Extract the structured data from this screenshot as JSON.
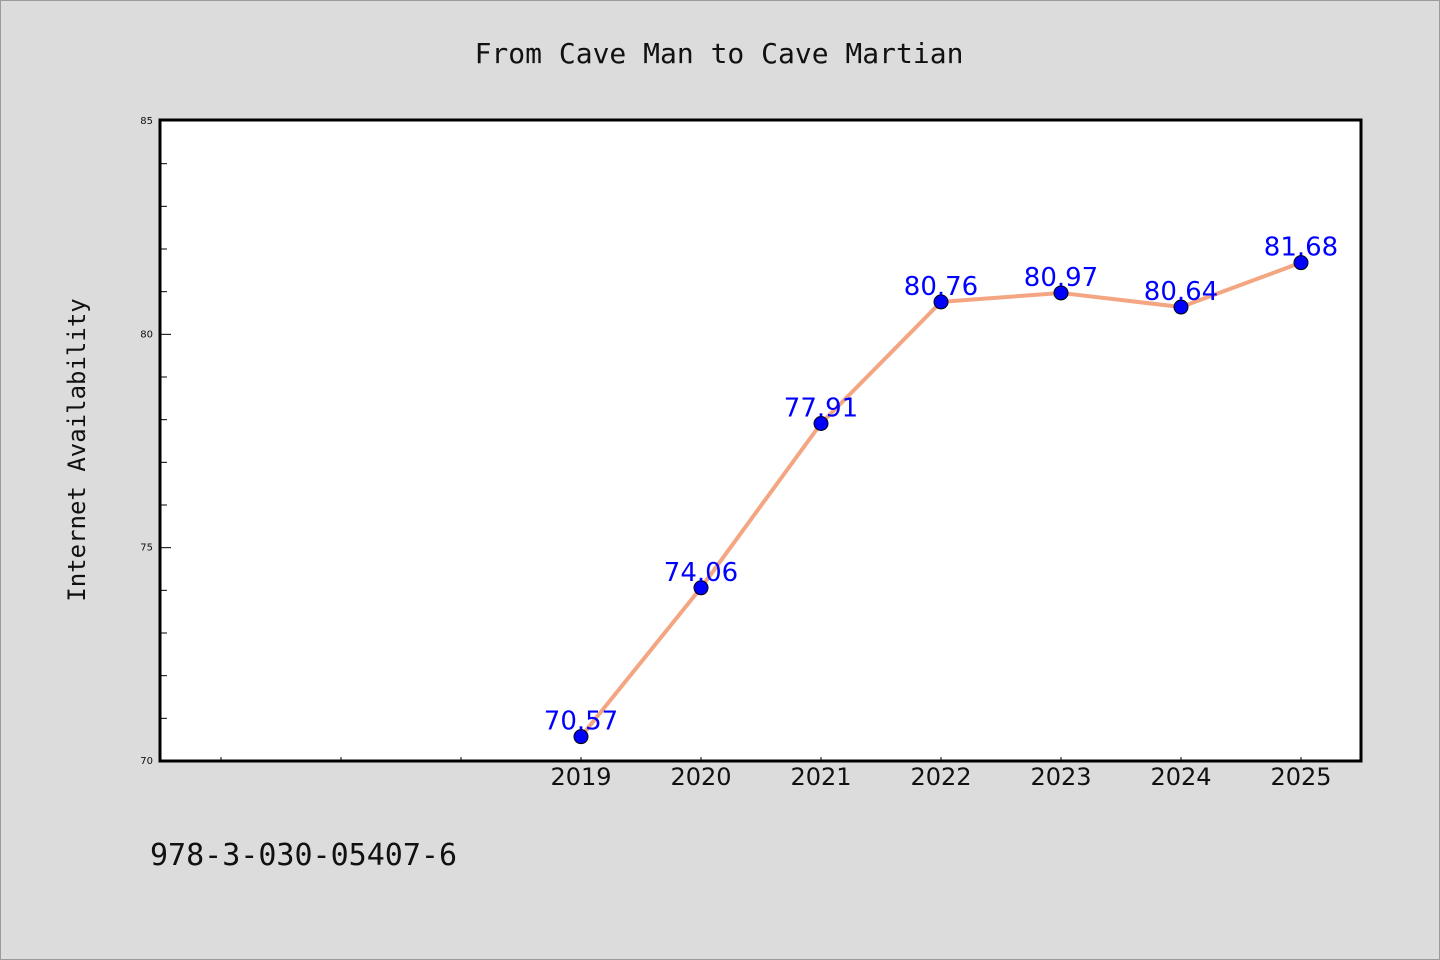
{
  "chart_data": {
    "type": "line",
    "title": "From Cave Man to Cave Martian",
    "xlabel": "",
    "ylabel": "Internet Availability",
    "categories": [
      "2019",
      "2020",
      "2021",
      "2022",
      "2023",
      "2024",
      "2025"
    ],
    "values": [
      70.57,
      74.06,
      77.91,
      80.76,
      80.97,
      80.64,
      81.68
    ],
    "value_labels": [
      "70.57",
      "74.06",
      "77.91",
      "80.76",
      "80.97",
      "80.64",
      "81.68"
    ],
    "ylim": [
      70,
      85
    ],
    "yticks": [
      "70",
      "75",
      "80",
      "85"
    ],
    "grid": false,
    "line_color": "#f4a582",
    "marker_color": "#0000ff",
    "label_color": "#0000ff"
  },
  "footer": {
    "isbn": "978-3-030-05407-6"
  }
}
